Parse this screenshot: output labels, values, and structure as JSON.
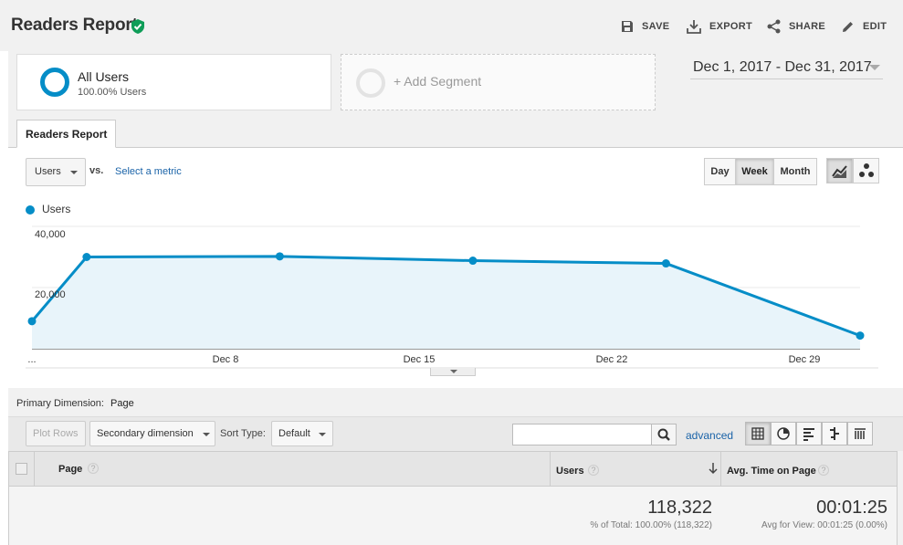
{
  "header": {
    "title": "Readers Report",
    "actions": {
      "save": "SAVE",
      "export": "EXPORT",
      "share": "SHARE",
      "edit": "EDIT"
    }
  },
  "segments": {
    "active": {
      "name": "All Users",
      "subtitle": "100.00% Users"
    },
    "add_label": "+ Add Segment"
  },
  "date_range": "Dec 1, 2017 - Dec 31, 2017",
  "tab": "Readers Report",
  "controls": {
    "metric": "Users",
    "vs": "vs.",
    "select_metric": "Select a metric",
    "granularity": [
      "Day",
      "Week",
      "Month"
    ],
    "active_granularity": "Week"
  },
  "chart_data": {
    "type": "area",
    "series": [
      {
        "name": "Users",
        "color": "#058dc7",
        "values": [
          9000,
          30000,
          30200,
          28800,
          27900,
          4300
        ]
      }
    ],
    "yticks": [
      "40,000",
      "20,000"
    ],
    "ylim": [
      0,
      40000
    ],
    "xticks": [
      "...",
      "Dec 8",
      "Dec 15",
      "Dec 22",
      "Dec 29"
    ]
  },
  "table": {
    "primary_dimension_label": "Primary Dimension:",
    "primary_dimension": "Page",
    "toolbar": {
      "plot_rows": "Plot Rows",
      "secondary_dimension": "Secondary dimension",
      "sort_type_label": "Sort Type:",
      "sort_type": "Default",
      "advanced": "advanced"
    },
    "columns": [
      "Page",
      "Users",
      "Avg. Time on Page"
    ],
    "totals": {
      "users": "118,322",
      "users_sub": "% of Total: 100.00% (118,322)",
      "avg_time": "00:01:25",
      "avg_time_sub": "Avg for View: 00:01:25 (0.00%)"
    }
  }
}
